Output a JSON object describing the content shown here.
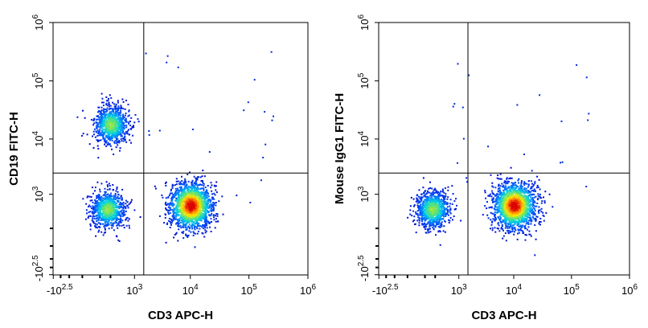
{
  "chart_data": [
    {
      "type": "scatter",
      "subtype": "flow-cytometry-density-plot",
      "title": "",
      "xlabel": "CD3 APC-H",
      "ylabel": "CD19 FITC-H",
      "x_scale": "biexponential",
      "y_scale": "biexponential",
      "x_ticks": [
        {
          "base": "-10",
          "exp": "2.5"
        },
        {
          "base": "10",
          "exp": "3"
        },
        {
          "base": "10",
          "exp": "4"
        },
        {
          "base": "10",
          "exp": "5"
        },
        {
          "base": "10",
          "exp": "6"
        }
      ],
      "y_ticks": [
        {
          "base": "-10",
          "exp": "2.5"
        },
        {
          "base": "10",
          "exp": "3"
        },
        {
          "base": "10",
          "exp": "4"
        },
        {
          "base": "10",
          "exp": "5"
        },
        {
          "base": "10",
          "exp": "6"
        }
      ],
      "quadrant_gate": {
        "x": 1500,
        "y": 2500
      },
      "populations": [
        {
          "x": 300,
          "y": 18000,
          "density": "medium"
        },
        {
          "x": 250,
          "y": 500,
          "density": "medium"
        },
        {
          "x": 10000,
          "y": 600,
          "density": "high"
        }
      ],
      "grid": false
    },
    {
      "type": "scatter",
      "subtype": "flow-cytometry-density-plot",
      "title": "",
      "xlabel": "CD3 APC-H",
      "ylabel": "Mouse IgG1 FITC-H",
      "x_scale": "biexponential",
      "y_scale": "biexponential",
      "x_ticks": [
        {
          "base": "-10",
          "exp": "2.5"
        },
        {
          "base": "10",
          "exp": "3"
        },
        {
          "base": "10",
          "exp": "4"
        },
        {
          "base": "10",
          "exp": "5"
        },
        {
          "base": "10",
          "exp": "6"
        }
      ],
      "y_ticks": [
        {
          "base": "-10",
          "exp": "2.5"
        },
        {
          "base": "10",
          "exp": "3"
        },
        {
          "base": "10",
          "exp": "4"
        },
        {
          "base": "10",
          "exp": "5"
        },
        {
          "base": "10",
          "exp": "6"
        }
      ],
      "quadrant_gate": {
        "x": 1500,
        "y": 2500
      },
      "populations": [
        {
          "x": 250,
          "y": 500,
          "density": "medium"
        },
        {
          "x": 10000,
          "y": 600,
          "density": "high"
        }
      ],
      "grid": false
    }
  ]
}
